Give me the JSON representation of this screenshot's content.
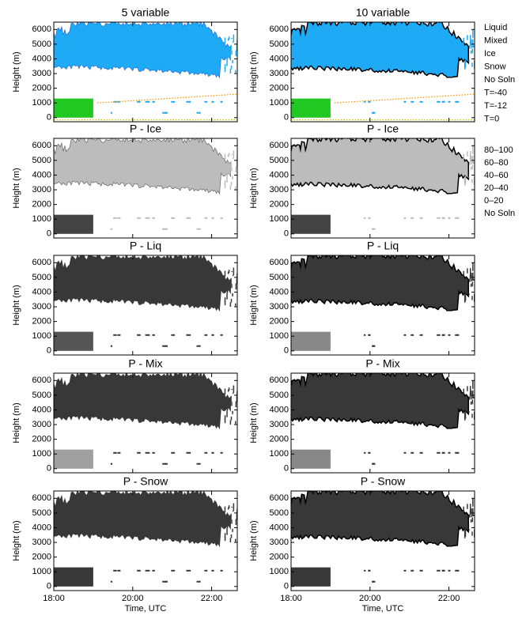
{
  "chart_data": [
    {
      "type": "image",
      "title": "5 variable",
      "ylabel": "Height (m)",
      "color": "#1eaaf5",
      "edge_color": "#1e5fd0",
      "low_color": "#22c822",
      "xlim": [
        18,
        22.65
      ],
      "xticks": [
        18,
        20,
        22
      ],
      "ylim": [
        -280,
        6500
      ],
      "yticks": [
        0,
        1000,
        2000,
        3000,
        4000,
        5000,
        6000
      ],
      "series": [
        {
          "name": "T=-12",
          "color": "#ff9900",
          "x": [
            19.1,
            22.65
          ],
          "values": [
            1000,
            1600
          ]
        },
        {
          "name": "T=0",
          "color": "#cccc00",
          "x": [
            18,
            22.65
          ],
          "values": [
            -150,
            -150
          ]
        }
      ]
    },
    {
      "type": "image",
      "title": "10 variable",
      "ylabel": "Height (m)",
      "color": "#1eaaf5",
      "edge_color": "#000000",
      "low_color": "#22c822",
      "xlim": [
        18,
        22.65
      ],
      "xticks": [
        18,
        20,
        22
      ],
      "ylim": [
        -280,
        6500
      ],
      "yticks": [
        0,
        1000,
        2000,
        3000,
        4000,
        5000,
        6000
      ],
      "series": [
        {
          "name": "T=-12",
          "color": "#ff9900",
          "x": [
            19.1,
            22.65
          ],
          "values": [
            1000,
            1600
          ]
        },
        {
          "name": "T=0",
          "color": "#cccc00",
          "x": [
            18,
            22.65
          ],
          "values": [
            -150,
            -150
          ]
        }
      ],
      "legend": [
        {
          "name": "Liquid",
          "color": "#a020f0"
        },
        {
          "name": "Mixed",
          "color": "#22cc22"
        },
        {
          "name": "Ice",
          "color": "#1eaaf5"
        },
        {
          "name": "Snow",
          "color": "#3a1fd8"
        },
        {
          "name": "No Soln",
          "color": "#000000"
        },
        {
          "name": "T=-40",
          "color": "#ff0000"
        },
        {
          "name": "T=-12",
          "color": "#ff9900"
        },
        {
          "name": "T=0",
          "color": "#cccc00"
        }
      ]
    },
    {
      "type": "image",
      "title": "P - Ice",
      "ylabel": "Height (m)",
      "color": "#bcbcbc",
      "edge_color": "#555555",
      "low_color": "#444444",
      "xlim": [
        18,
        22.65
      ],
      "xticks": [
        18,
        20,
        22
      ],
      "ylim": [
        -280,
        6500
      ],
      "yticks": [
        0,
        1000,
        2000,
        3000,
        4000,
        5000,
        6000
      ]
    },
    {
      "type": "image",
      "title": "P - Ice",
      "ylabel": "Height (m)",
      "color": "#bcbcbc",
      "edge_color": "#000000",
      "low_color": "#444444",
      "xlim": [
        18,
        22.65
      ],
      "xticks": [
        18,
        20,
        22
      ],
      "ylim": [
        -280,
        6500
      ],
      "yticks": [
        0,
        1000,
        2000,
        3000,
        4000,
        5000,
        6000
      ],
      "legend": [
        {
          "name": "80–100",
          "color": "#c8c8c8"
        },
        {
          "name": "60–80",
          "color": "#9a9a9a"
        },
        {
          "name": "40–60",
          "color": "#6e6e6e"
        },
        {
          "name": "20–40",
          "color": "#444444"
        },
        {
          "name": "0–20",
          "color": "#222222"
        },
        {
          "name": "No Soln",
          "color": "#000000"
        }
      ]
    },
    {
      "type": "image",
      "title": "P - Liq",
      "ylabel": "Height (m)",
      "color": "#383838",
      "edge_color": "#383838",
      "low_color": "#555555",
      "xlim": [
        18,
        22.65
      ],
      "xticks": [
        18,
        20,
        22
      ],
      "ylim": [
        -280,
        6500
      ],
      "yticks": [
        0,
        1000,
        2000,
        3000,
        4000,
        5000,
        6000
      ]
    },
    {
      "type": "image",
      "title": "P - Liq",
      "ylabel": "Height (m)",
      "color": "#383838",
      "edge_color": "#000000",
      "low_color": "#888888",
      "xlim": [
        18,
        22.65
      ],
      "xticks": [
        18,
        20,
        22
      ],
      "ylim": [
        -280,
        6500
      ],
      "yticks": [
        0,
        1000,
        2000,
        3000,
        4000,
        5000,
        6000
      ]
    },
    {
      "type": "image",
      "title": "P - Mix",
      "ylabel": "Height (m)",
      "color": "#383838",
      "edge_color": "#383838",
      "low_color": "#a0a0a0",
      "xlim": [
        18,
        22.65
      ],
      "xticks": [
        18,
        20,
        22
      ],
      "ylim": [
        -280,
        6500
      ],
      "yticks": [
        0,
        1000,
        2000,
        3000,
        4000,
        5000,
        6000
      ]
    },
    {
      "type": "image",
      "title": "P - Mix",
      "ylabel": "Height (m)",
      "color": "#383838",
      "edge_color": "#000000",
      "low_color": "#888888",
      "xlim": [
        18,
        22.65
      ],
      "xticks": [
        18,
        20,
        22
      ],
      "ylim": [
        -280,
        6500
      ],
      "yticks": [
        0,
        1000,
        2000,
        3000,
        4000,
        5000,
        6000
      ]
    },
    {
      "type": "image",
      "title": "P - Snow",
      "ylabel": "Height (m)",
      "xlabel": "Time, UTC",
      "color": "#383838",
      "edge_color": "#383838",
      "low_color": "#383838",
      "xlim": [
        18,
        22.65
      ],
      "xticks": [
        {
          "value": 18,
          "label": "18:00"
        },
        {
          "value": 20,
          "label": "20:00"
        },
        {
          "value": 22,
          "label": "22:00"
        }
      ],
      "ylim": [
        -280,
        6500
      ],
      "yticks": [
        0,
        1000,
        2000,
        3000,
        4000,
        5000,
        6000
      ]
    },
    {
      "type": "image",
      "title": "P - Snow",
      "ylabel": "Height (m)",
      "xlabel": "Time, UTC",
      "color": "#383838",
      "edge_color": "#000000",
      "low_color": "#383838",
      "xlim": [
        18,
        22.65
      ],
      "xticks": [
        {
          "value": 18,
          "label": "18:00"
        },
        {
          "value": 20,
          "label": "20:00"
        },
        {
          "value": 22,
          "label": "22:00"
        }
      ],
      "ylim": [
        -280,
        6500
      ],
      "yticks": [
        0,
        1000,
        2000,
        3000,
        4000,
        5000,
        6000
      ]
    }
  ]
}
